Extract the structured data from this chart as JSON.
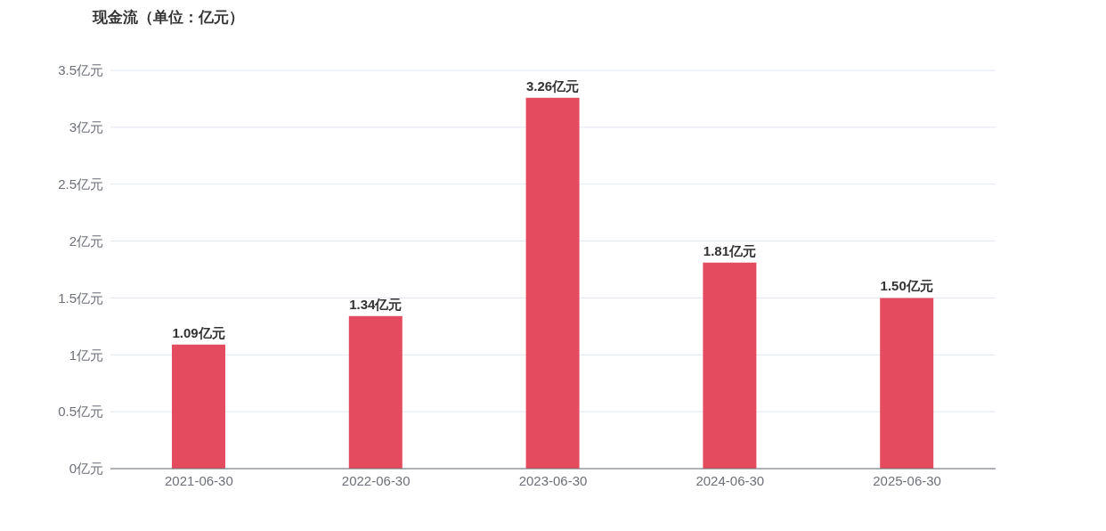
{
  "chart_data": {
    "type": "bar",
    "title": "现金流（单位：亿元）",
    "categories": [
      "2021-06-30",
      "2022-06-30",
      "2023-06-30",
      "2024-06-30",
      "2025-06-30"
    ],
    "values": [
      1.09,
      1.34,
      3.26,
      1.81,
      1.5
    ],
    "value_labels": [
      "1.09亿元",
      "1.34亿元",
      "3.26亿元",
      "1.81亿元",
      "1.50亿元"
    ],
    "color": "#e54b5e",
    "ylim": [
      0,
      3.5
    ],
    "yticks": [
      {
        "value": 0,
        "label": "0亿元"
      },
      {
        "value": 0.5,
        "label": "0.5亿元"
      },
      {
        "value": 1,
        "label": "1亿元"
      },
      {
        "value": 1.5,
        "label": "1.5亿元"
      },
      {
        "value": 2,
        "label": "2亿元"
      },
      {
        "value": 2.5,
        "label": "2.5亿元"
      },
      {
        "value": 3,
        "label": "3亿元"
      },
      {
        "value": 3.5,
        "label": "3.5亿元"
      }
    ],
    "grid": "y",
    "legend": false
  }
}
